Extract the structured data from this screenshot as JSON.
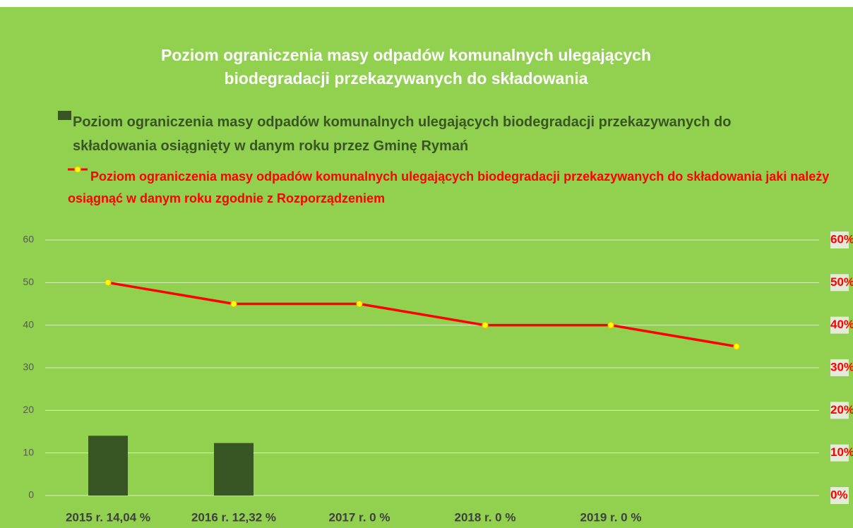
{
  "chart_data": {
    "type": "bar_line",
    "title": "Poziom ograniczenia masy odpadów komunalnych ulegających biodegradacji przekazywanych do składowania",
    "categories": [
      "2015 r. 14,04 %",
      "2016 r. 12,32 %",
      "2017 r. 0 %",
      "2018 r. 0 %",
      "2019 r. 0 %",
      null
    ],
    "series": [
      {
        "name": "Poziom ograniczenia masy odpadów komunalnych ulegających biodegradacji przekazywanych do składowania osiągnięty w danym roku przez Gminę Rymań",
        "type": "bar",
        "color": "#375623",
        "values": [
          14.04,
          12.32,
          0,
          0,
          0,
          null
        ]
      },
      {
        "name": "Poziom ograniczenia masy odpadów komunalnych ulegających biodegradacji przekazywanych do składowania jaki należy osiągnąć w danym roku zgodnie z Rozporządzeniem",
        "type": "line",
        "axis": "y2",
        "color": "#ff0000",
        "marker_color": "#ffff00",
        "values": [
          50,
          45,
          45,
          40,
          40,
          35
        ]
      }
    ],
    "ylim": [
      0,
      60
    ],
    "yticks": [
      0,
      10,
      20,
      30,
      40,
      50,
      60
    ],
    "y2lim": [
      0,
      60
    ],
    "y2ticks": [
      {
        "value": 0,
        "label": "0%"
      },
      {
        "value": 10,
        "label": "10%"
      },
      {
        "value": 20,
        "label": "20%"
      },
      {
        "value": 30,
        "label": "30%"
      },
      {
        "value": 40,
        "label": "40%"
      },
      {
        "value": 50,
        "label": "50%"
      },
      {
        "value": 60,
        "label": "60%"
      }
    ],
    "grid": true,
    "background": "#92d050"
  }
}
